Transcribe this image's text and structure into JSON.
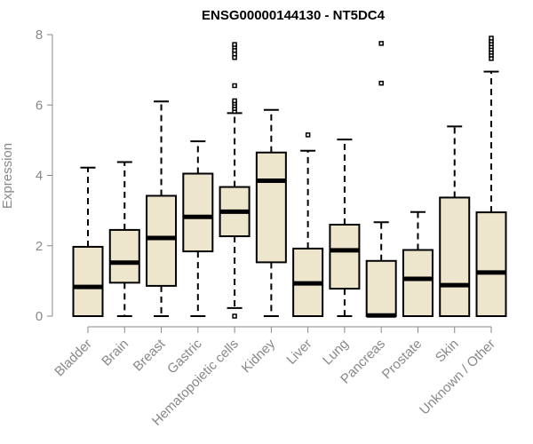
{
  "chart_data": {
    "type": "boxplot",
    "title": "ENSG00000144130 - NT5DC4",
    "xlabel": "",
    "ylabel": "Expression",
    "ylim": [
      0,
      8
    ],
    "yticks": [
      0,
      2,
      4,
      6,
      8
    ],
    "grid": false,
    "colors": {
      "box_fill": "#ede6cd",
      "box_stroke": "#000000",
      "axis": "#888888",
      "tick_text": "#888888"
    },
    "categories": [
      "Bladder",
      "Brain",
      "Breast",
      "Gastric",
      "Hematopoietic cells",
      "Kidney",
      "Liver",
      "Lung",
      "Pancreas",
      "Prostate",
      "Skin",
      "Unknown / Other"
    ],
    "series": [
      {
        "name": "Bladder",
        "whisker_low": 0,
        "q1": 0,
        "median": 0.83,
        "q3": 1.97,
        "whisker_high": 4.22,
        "outliers": []
      },
      {
        "name": "Brain",
        "whisker_low": 0,
        "q1": 0.95,
        "median": 1.52,
        "q3": 2.45,
        "whisker_high": 4.38,
        "outliers": []
      },
      {
        "name": "Breast",
        "whisker_low": 0,
        "q1": 0.86,
        "median": 2.22,
        "q3": 3.42,
        "whisker_high": 6.1,
        "outliers": []
      },
      {
        "name": "Gastric",
        "whisker_low": 0,
        "q1": 1.84,
        "median": 2.82,
        "q3": 4.05,
        "whisker_high": 4.97,
        "outliers": []
      },
      {
        "name": "Hematopoietic cells",
        "whisker_low": 0.23,
        "q1": 2.27,
        "median": 2.97,
        "q3": 3.67,
        "whisker_high": 5.77,
        "outliers": [
          0.0,
          5.82,
          5.9,
          5.98,
          6.05,
          6.12,
          6.55,
          7.35,
          7.45,
          7.55,
          7.65,
          7.72
        ]
      },
      {
        "name": "Kidney",
        "whisker_low": 0,
        "q1": 1.53,
        "median": 3.85,
        "q3": 4.65,
        "whisker_high": 5.86,
        "outliers": []
      },
      {
        "name": "Liver",
        "whisker_low": 0,
        "q1": 0,
        "median": 0.93,
        "q3": 1.92,
        "whisker_high": 4.7,
        "outliers": [
          5.15
        ]
      },
      {
        "name": "Lung",
        "whisker_low": 0,
        "q1": 0.78,
        "median": 1.87,
        "q3": 2.6,
        "whisker_high": 5.02,
        "outliers": []
      },
      {
        "name": "Pancreas",
        "whisker_low": 0,
        "q1": 0,
        "median": 0.02,
        "q3": 1.57,
        "whisker_high": 2.67,
        "outliers": [
          6.62,
          7.75
        ]
      },
      {
        "name": "Prostate",
        "whisker_low": 0,
        "q1": 0,
        "median": 1.06,
        "q3": 1.88,
        "whisker_high": 2.96,
        "outliers": []
      },
      {
        "name": "Skin",
        "whisker_low": 0,
        "q1": 0,
        "median": 0.88,
        "q3": 3.37,
        "whisker_high": 5.39,
        "outliers": []
      },
      {
        "name": "Unknown / Other",
        "whisker_low": 0,
        "q1": 0,
        "median": 1.24,
        "q3": 2.95,
        "whisker_high": 6.95,
        "outliers": [
          7.32,
          7.42,
          7.5,
          7.58,
          7.66,
          7.74,
          7.82,
          7.9
        ]
      }
    ]
  }
}
